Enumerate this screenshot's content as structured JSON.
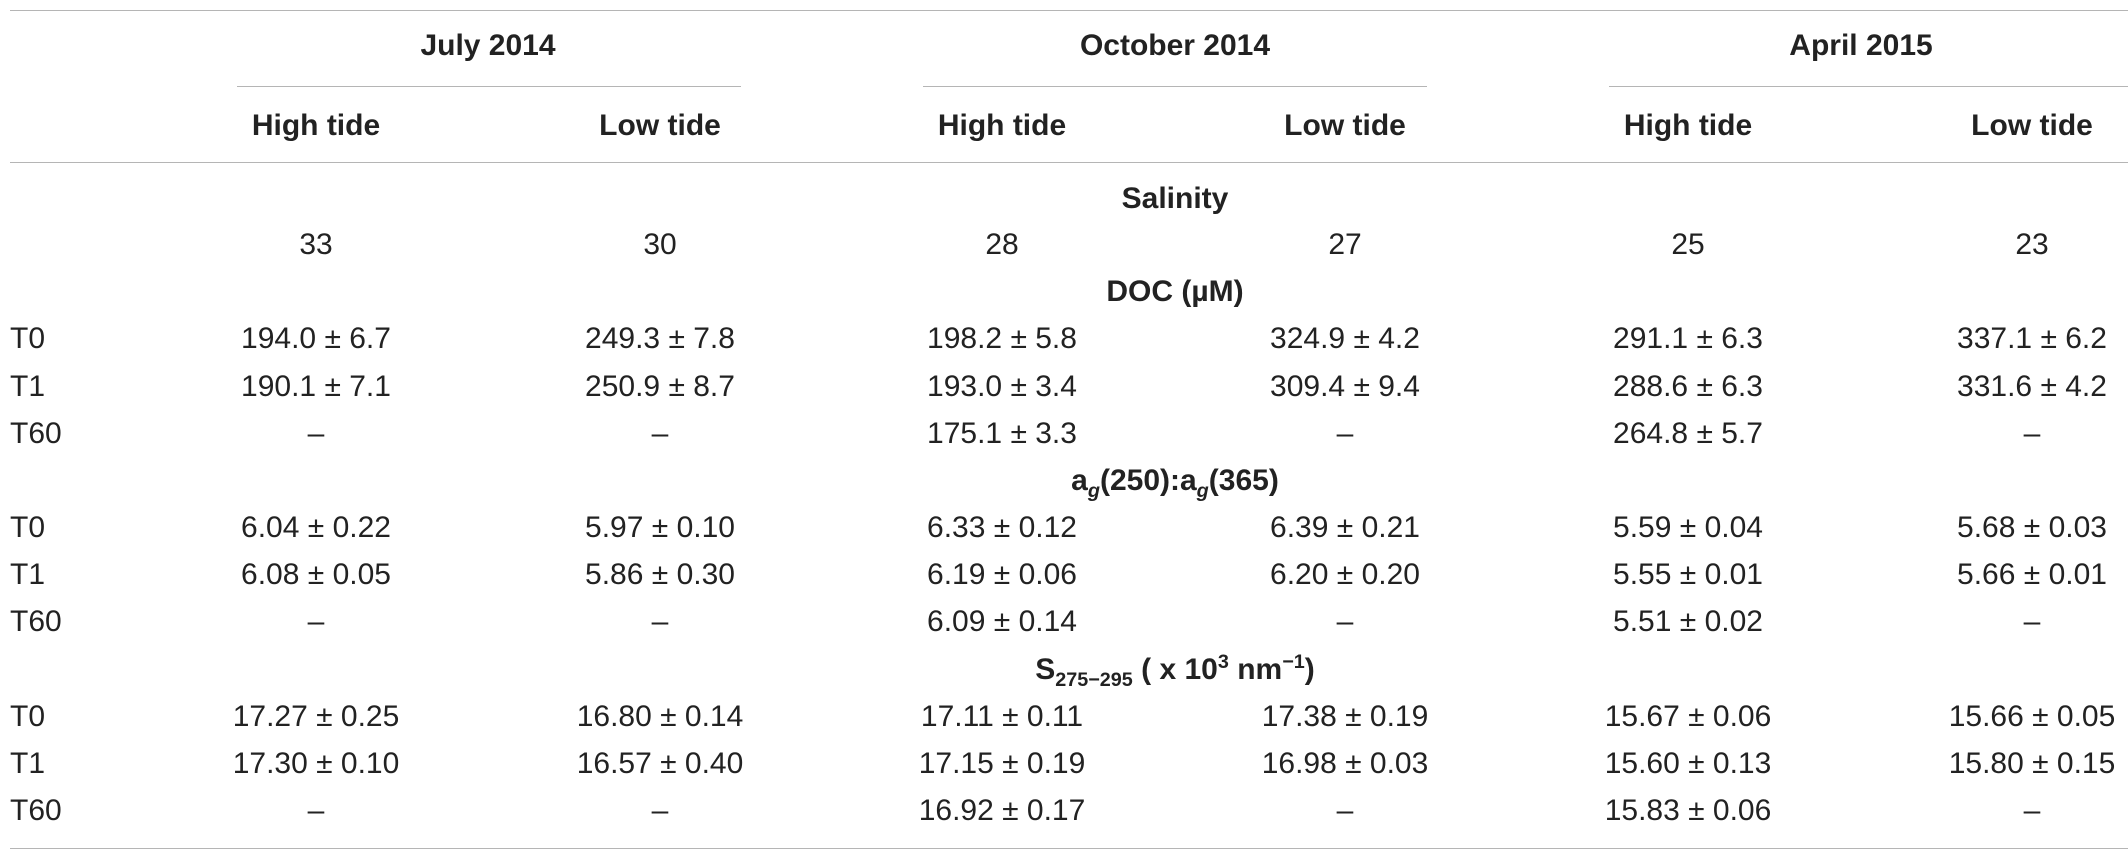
{
  "header": {
    "periods": [
      "July 2014",
      "October 2014",
      "April 2015"
    ],
    "tides": [
      "High tide",
      "Low tide",
      "High tide",
      "Low tide",
      "High tide",
      "Low tide"
    ]
  },
  "sections": [
    {
      "title": "Salinity",
      "rows": [
        {
          "label": "",
          "values": [
            "33",
            "30",
            "28",
            "27",
            "25",
            "23"
          ]
        }
      ]
    },
    {
      "title": "DOC (µM)",
      "rows": [
        {
          "label": "T0",
          "values": [
            "194.0 ± 6.7",
            "249.3 ± 7.8",
            "198.2 ± 5.8",
            "324.9 ± 4.2",
            "291.1 ± 6.3",
            "337.1 ± 6.2"
          ]
        },
        {
          "label": "T1",
          "values": [
            "190.1 ± 7.1",
            "250.9 ± 8.7",
            "193.0 ± 3.4",
            "309.4 ± 9.4",
            "288.6 ± 6.3",
            "331.6 ± 4.2"
          ]
        },
        {
          "label": "T60",
          "values": [
            "–",
            "–",
            "175.1 ± 3.3",
            "–",
            "264.8 ± 5.7",
            "–"
          ]
        }
      ]
    },
    {
      "title": "ag(250):ag(365)",
      "title_parts": {
        "a1": "a",
        "s1": "g",
        "m1": "(250):",
        "a2": "a",
        "s2": "g",
        "m2": "(365)"
      },
      "rows": [
        {
          "label": "T0",
          "values": [
            "6.04 ± 0.22",
            "5.97 ± 0.10",
            "6.33 ± 0.12",
            "6.39 ± 0.21",
            "5.59 ± 0.04",
            "5.68 ± 0.03"
          ]
        },
        {
          "label": "T1",
          "values": [
            "6.08 ± 0.05",
            "5.86 ± 0.30",
            "6.19 ± 0.06",
            "6.20 ± 0.20",
            "5.55 ± 0.01",
            "5.66 ± 0.01"
          ]
        },
        {
          "label": "T60",
          "values": [
            "–",
            "–",
            "6.09 ± 0.14",
            "–",
            "5.51 ± 0.02",
            "–"
          ]
        }
      ]
    },
    {
      "title": "S275–295 ( x 10³ nm⁻¹)",
      "title_parts": {
        "s": "S",
        "sub": "275−295",
        "mid": " ( x 10",
        "sup1": "3",
        "unit": " nm",
        "sup2": "−1",
        "close": ")"
      },
      "rows": [
        {
          "label": "T0",
          "values": [
            "17.27 ± 0.25",
            "16.80 ± 0.14",
            "17.11 ± 0.11",
            "17.38 ± 0.19",
            "15.67 ± 0.06",
            "15.66 ± 0.05"
          ]
        },
        {
          "label": "T1",
          "values": [
            "17.30 ± 0.10",
            "16.57 ± 0.40",
            "17.15 ± 0.19",
            "16.98 ± 0.03",
            "15.60 ± 0.13",
            "15.80 ± 0.15"
          ]
        },
        {
          "label": "T60",
          "values": [
            "–",
            "–",
            "16.92 ± 0.17",
            "–",
            "15.83 ± 0.06",
            "–"
          ]
        }
      ]
    }
  ]
}
